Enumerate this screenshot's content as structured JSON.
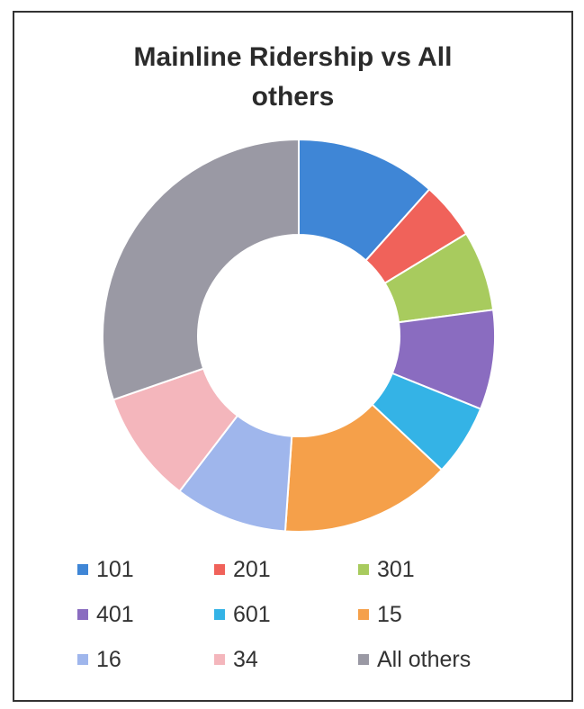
{
  "chart_data": {
    "type": "pie",
    "donut": true,
    "title": "Mainline Ridership vs All others",
    "title_lines": [
      "Mainline Ridership vs All",
      "others"
    ],
    "categories": [
      "101",
      "201",
      "301",
      "401",
      "601",
      "15",
      "16",
      "34",
      "All others"
    ],
    "values": [
      11.6,
      4.7,
      6.6,
      8.2,
      5.9,
      14.1,
      9.3,
      9.3,
      30.3
    ],
    "colors": [
      "#3f86d6",
      "#f0625a",
      "#a8cb5e",
      "#8a6cc0",
      "#34b3e6",
      "#f5a04a",
      "#9fb6ec",
      "#f4b6bc",
      "#9a99a4"
    ],
    "legend": "bottom",
    "start_angle_deg": 0,
    "direction": "clockwise"
  }
}
